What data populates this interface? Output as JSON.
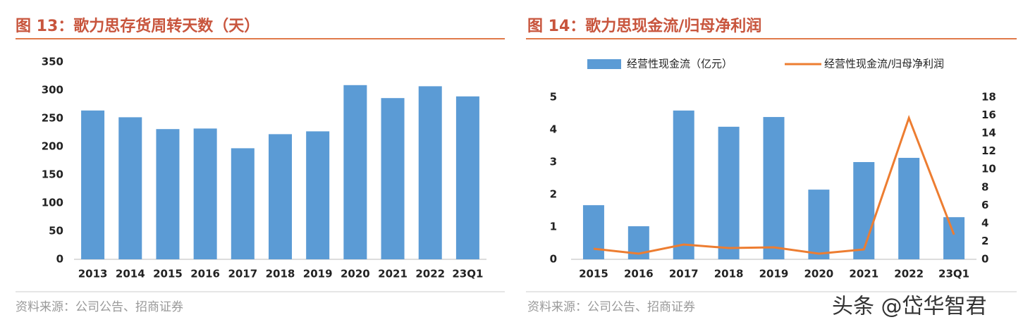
{
  "chart_data": [
    {
      "type": "bar",
      "title": "图 13：歌力思存货周转天数（天）",
      "source": "资料来源：公司公告、招商证券",
      "categories": [
        "2013",
        "2014",
        "2015",
        "2016",
        "2017",
        "2018",
        "2019",
        "2020",
        "2021",
        "2022",
        "23Q1"
      ],
      "values": [
        264,
        252,
        231,
        232,
        197,
        222,
        227,
        309,
        286,
        307,
        289
      ],
      "color": "#5b9bd5",
      "ylim": [
        0,
        350
      ],
      "yticks": [
        0,
        50,
        100,
        150,
        200,
        250,
        300,
        350
      ],
      "grid": false
    },
    {
      "type": "bar-line",
      "title": "图 14：歌力思现金流/归母净利润",
      "source": "资料来源：公司公告、招商证券",
      "categories": [
        "2015",
        "2016",
        "2017",
        "2018",
        "2019",
        "2020",
        "2021",
        "2022",
        "23Q1"
      ],
      "series": [
        {
          "name": "经营性现金流（亿元）",
          "color": "#5b9bd5",
          "type": "bar",
          "values": [
            1.67,
            1.02,
            4.59,
            4.09,
            4.39,
            2.15,
            3.0,
            3.13,
            1.3
          ]
        },
        {
          "name": "经营性现金流/归母净利润",
          "color": "#ed7d31",
          "type": "line",
          "axis": "y2",
          "values": [
            1.17,
            0.63,
            1.64,
            1.25,
            1.33,
            0.63,
            1.1,
            15.7,
            2.74
          ]
        }
      ],
      "ylim": [
        0,
        5
      ],
      "yticks": [
        0,
        1,
        2,
        3,
        4,
        5
      ],
      "y2lim": [
        0,
        18
      ],
      "y2ticks": [
        0,
        2,
        4,
        6,
        8,
        10,
        12,
        14,
        16,
        18
      ],
      "legend": "top",
      "grid": false
    }
  ],
  "watermark": "头条 @岱华智君"
}
